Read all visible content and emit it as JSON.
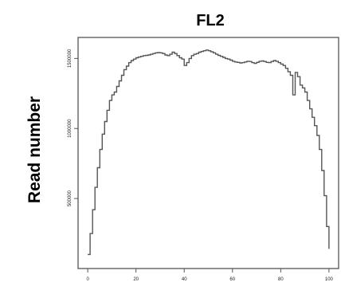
{
  "chart_data": {
    "type": "line",
    "title": "FL2",
    "xlabel": "",
    "ylabel": "Read number",
    "xlim": [
      -4,
      104
    ],
    "ylim": [
      0,
      1650000
    ],
    "xticks": [
      0,
      20,
      40,
      60,
      80,
      100
    ],
    "xtick_labels": [
      "0",
      "20",
      "40",
      "60",
      "80",
      "100"
    ],
    "yticks": [
      500000,
      1000000,
      1500000
    ],
    "ytick_labels": [
      "500000",
      "1000000",
      "1500000"
    ],
    "grid": false,
    "series": [
      {
        "x": [
          0,
          1,
          2,
          3,
          4,
          5,
          6,
          7,
          8,
          9,
          10,
          11,
          12,
          13,
          14,
          15,
          16,
          17,
          18,
          19,
          20,
          21,
          22,
          23,
          24,
          25,
          26,
          27,
          28,
          29,
          30,
          31,
          32,
          33,
          34,
          35,
          36,
          37,
          38,
          39,
          40,
          41,
          42,
          43,
          44,
          45,
          46,
          47,
          48,
          49,
          50,
          51,
          52,
          53,
          54,
          55,
          56,
          57,
          58,
          59,
          60,
          61,
          62,
          63,
          64,
          65,
          66,
          67,
          68,
          69,
          70,
          71,
          72,
          73,
          74,
          75,
          76,
          77,
          78,
          79,
          80,
          81,
          82,
          83,
          84,
          85,
          86,
          87,
          88,
          89,
          90,
          91,
          92,
          93,
          94,
          95,
          96,
          97,
          98,
          99,
          100
        ],
        "y": [
          100000,
          250000,
          420000,
          580000,
          720000,
          850000,
          960000,
          1050000,
          1130000,
          1200000,
          1240000,
          1260000,
          1300000,
          1340000,
          1380000,
          1420000,
          1445000,
          1470000,
          1485000,
          1495000,
          1505000,
          1510000,
          1515000,
          1520000,
          1522000,
          1525000,
          1530000,
          1535000,
          1540000,
          1542000,
          1540000,
          1535000,
          1525000,
          1520000,
          1530000,
          1545000,
          1535000,
          1520000,
          1505000,
          1495000,
          1450000,
          1470000,
          1500000,
          1520000,
          1530000,
          1535000,
          1545000,
          1550000,
          1555000,
          1560000,
          1555000,
          1548000,
          1540000,
          1530000,
          1522000,
          1515000,
          1508000,
          1500000,
          1495000,
          1488000,
          1480000,
          1475000,
          1472000,
          1468000,
          1470000,
          1475000,
          1480000,
          1478000,
          1470000,
          1465000,
          1472000,
          1480000,
          1482000,
          1478000,
          1472000,
          1470000,
          1478000,
          1485000,
          1480000,
          1470000,
          1460000,
          1450000,
          1430000,
          1405000,
          1380000,
          1240000,
          1400000,
          1370000,
          1310000,
          1290000,
          1260000,
          1200000,
          1140000,
          1080000,
          1020000,
          950000,
          850000,
          700000,
          520000,
          300000,
          140000
        ]
      }
    ]
  }
}
